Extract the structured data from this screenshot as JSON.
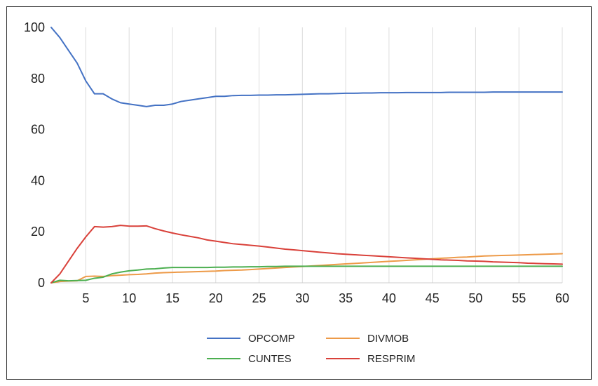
{
  "chart_data": {
    "type": "line",
    "title": "",
    "xlabel": "",
    "ylabel": "",
    "xlim": [
      1,
      60
    ],
    "ylim": [
      0,
      100
    ],
    "x_ticks": [
      5,
      10,
      15,
      20,
      25,
      30,
      35,
      40,
      45,
      50,
      55,
      60
    ],
    "y_ticks": [
      0,
      20,
      40,
      60,
      80,
      100
    ],
    "grid": "vertical",
    "legend": "bottom",
    "x": [
      1,
      2,
      3,
      4,
      5,
      6,
      7,
      8,
      9,
      10,
      11,
      12,
      13,
      14,
      15,
      16,
      17,
      18,
      19,
      20,
      21,
      22,
      23,
      24,
      25,
      26,
      27,
      28,
      29,
      30,
      31,
      32,
      33,
      34,
      35,
      36,
      37,
      38,
      39,
      40,
      41,
      42,
      43,
      44,
      45,
      46,
      47,
      48,
      49,
      50,
      51,
      52,
      53,
      54,
      55,
      56,
      57,
      58,
      59,
      60
    ],
    "series": [
      {
        "name": "OPCOMP",
        "color": "#4472C4",
        "values": [
          100,
          96,
          91,
          86,
          79,
          74,
          74,
          72,
          70.5,
          70,
          69.5,
          69,
          69.5,
          69.5,
          70,
          71,
          71.5,
          72,
          72.5,
          73,
          73,
          73.3,
          73.4,
          73.4,
          73.5,
          73.5,
          73.6,
          73.6,
          73.7,
          73.8,
          73.9,
          74,
          74,
          74.1,
          74.2,
          74.2,
          74.3,
          74.3,
          74.4,
          74.4,
          74.4,
          74.5,
          74.5,
          74.5,
          74.5,
          74.5,
          74.6,
          74.6,
          74.6,
          74.6,
          74.6,
          74.7,
          74.7,
          74.7,
          74.7,
          74.7,
          74.7,
          74.7,
          74.7,
          74.7
        ]
      },
      {
        "name": "DIVMOB",
        "color": "#ED9A48",
        "values": [
          0,
          0.5,
          0.7,
          0.8,
          2.5,
          2.6,
          2.5,
          2.8,
          3,
          3.2,
          3.3,
          3.5,
          3.8,
          4,
          4.1,
          4.2,
          4.3,
          4.4,
          4.5,
          4.6,
          4.8,
          4.9,
          5,
          5.2,
          5.4,
          5.6,
          5.8,
          6,
          6.2,
          6.4,
          6.6,
          6.8,
          7,
          7.2,
          7.4,
          7.6,
          7.8,
          8,
          8.2,
          8.4,
          8.6,
          8.8,
          9,
          9.2,
          9.4,
          9.6,
          9.8,
          10,
          10.1,
          10.3,
          10.5,
          10.6,
          10.7,
          10.8,
          10.9,
          11,
          11.1,
          11.2,
          11.3,
          11.4
        ]
      },
      {
        "name": "CUNTES",
        "color": "#4CAF50",
        "values": [
          0,
          1,
          0.8,
          0.9,
          1,
          1.8,
          2.2,
          3.5,
          4.2,
          4.7,
          5,
          5.4,
          5.5,
          5.8,
          6,
          6,
          6,
          6,
          6,
          6.1,
          6.1,
          6.2,
          6.2,
          6.3,
          6.3,
          6.4,
          6.4,
          6.5,
          6.5,
          6.5,
          6.5,
          6.5,
          6.5,
          6.5,
          6.5,
          6.5,
          6.5,
          6.5,
          6.5,
          6.5,
          6.5,
          6.5,
          6.5,
          6.5,
          6.5,
          6.5,
          6.5,
          6.5,
          6.5,
          6.5,
          6.5,
          6.5,
          6.5,
          6.5,
          6.5,
          6.5,
          6.5,
          6.5,
          6.5,
          6.5
        ]
      },
      {
        "name": "RESPRIM",
        "color": "#D9413A",
        "values": [
          0,
          3.5,
          8.5,
          13.5,
          18,
          22,
          21.8,
          22,
          22.5,
          22.2,
          22.2,
          22.3,
          21.2,
          20.3,
          19.5,
          18.8,
          18.2,
          17.6,
          16.8,
          16.3,
          15.8,
          15.3,
          15,
          14.7,
          14.4,
          14,
          13.6,
          13.2,
          12.9,
          12.6,
          12.3,
          12,
          11.7,
          11.4,
          11.2,
          11,
          10.8,
          10.6,
          10.4,
          10.2,
          10,
          9.8,
          9.6,
          9.4,
          9.2,
          9,
          8.9,
          8.8,
          8.6,
          8.5,
          8.4,
          8.2,
          8.1,
          8,
          7.9,
          7.7,
          7.6,
          7.5,
          7.4,
          7.3
        ]
      }
    ]
  }
}
